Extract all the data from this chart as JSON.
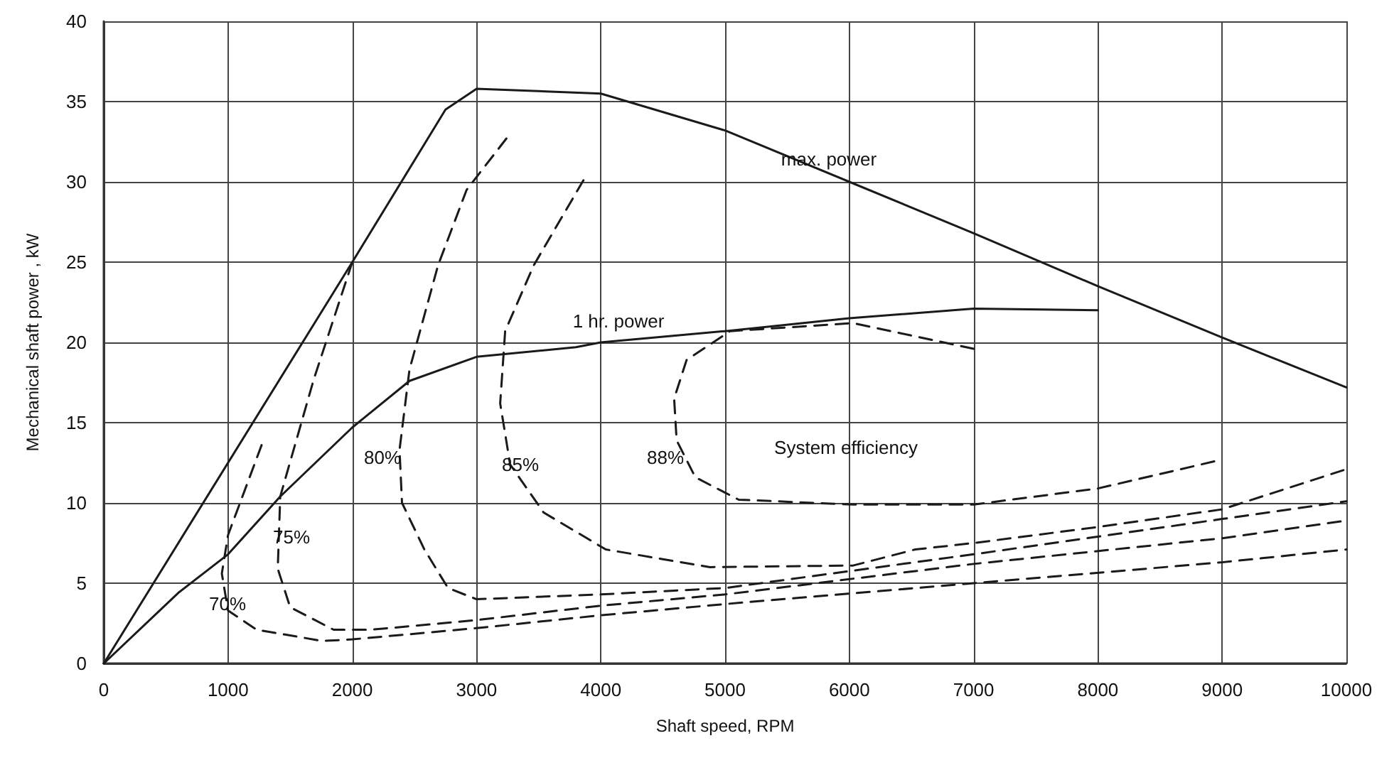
{
  "chart_data": {
    "type": "line",
    "xlabel": "Shaft speed, RPM",
    "ylabel": "Mechanical shaft power , kW",
    "xlim": [
      0,
      10000
    ],
    "xticks": [
      0,
      1000,
      2000,
      3000,
      4000,
      5000,
      6000,
      7000,
      8000,
      9000,
      10000
    ],
    "ylim": [
      0,
      40
    ],
    "yticks": [
      0,
      5,
      10,
      15,
      20,
      25,
      30,
      35,
      40
    ],
    "grid": true,
    "marker": "none",
    "series": [
      {
        "color": "#1a1a1a",
        "line_style": "solid",
        "x": [
          0,
          2000,
          2750,
          3000,
          4000,
          5000,
          6000,
          7000,
          8000,
          9000,
          10000
        ],
        "values": [
          0,
          25,
          34.5,
          35.8,
          35.5,
          33.2,
          30,
          26.8,
          23.5,
          20.3,
          17.2
        ]
      },
      {
        "color": "#1a1a1a",
        "line_style": "solid",
        "x": [
          0,
          600,
          1000,
          1420,
          2000,
          2460,
          3000,
          3800,
          4000,
          5000,
          6000,
          7000,
          8000
        ],
        "values": [
          0,
          4.4,
          6.8,
          10.4,
          14.7,
          17.6,
          19.1,
          19.7,
          20,
          20.7,
          21.5,
          22.1,
          22
        ]
      },
      {
        "color": "#1a1a1a",
        "line_style": "dashed",
        "x": [
          7000,
          6030,
          5040,
          4690,
          4590,
          4610,
          4760,
          5110,
          6030,
          7000,
          8000,
          9000
        ],
        "values": [
          19.6,
          21.2,
          20.7,
          18.9,
          16.5,
          13.9,
          11.6,
          10.2,
          9.9,
          9.9,
          10.9,
          12.7
        ]
      },
      {
        "color": "#1a1a1a",
        "line_style": "dashed",
        "x": [
          3860,
          3460,
          3230,
          3190,
          3270,
          3540,
          4040,
          4880,
          6030,
          6530,
          7000,
          8000,
          9000,
          10000
        ],
        "values": [
          30.1,
          24.8,
          20.7,
          16.2,
          12.4,
          9.4,
          7.1,
          6,
          6.1,
          7.1,
          7.5,
          8.5,
          9.6,
          12.1
        ]
      },
      {
        "color": "#1a1a1a",
        "line_style": "dashed",
        "x": [
          3240,
          2920,
          2690,
          2460,
          2380,
          2400,
          2580,
          2770,
          3000,
          4000,
          5000,
          7000,
          9000,
          10000
        ],
        "values": [
          32.7,
          29.5,
          24.8,
          18.3,
          13.3,
          10,
          7.1,
          4.7,
          4,
          4.3,
          4.7,
          6.8,
          9,
          10.1
        ]
      },
      {
        "color": "#1a1a1a",
        "line_style": "dashed",
        "x": [
          2000,
          1690,
          1420,
          1400,
          1500,
          1850,
          2150,
          3000,
          4000,
          5000,
          7000,
          9000,
          10000
        ],
        "values": [
          25,
          17.7,
          10.4,
          5.9,
          3.5,
          2.1,
          2.1,
          2.7,
          3.6,
          4.3,
          6.2,
          7.8,
          8.9
        ]
      },
      {
        "color": "#1a1a1a",
        "line_style": "dashed",
        "x": [
          1270,
          1000,
          950,
          1000,
          1230,
          1760,
          2000,
          3000,
          4000,
          5000,
          7000,
          9000,
          10000
        ],
        "values": [
          13.6,
          8,
          5.6,
          3.3,
          2.1,
          1.4,
          1.5,
          2.2,
          3,
          3.7,
          5,
          6.3,
          7.1
        ]
      }
    ],
    "annotations": [
      "max. power",
      "1 hr. power",
      "System efficiency",
      "70%",
      "75%",
      "80%",
      "85%",
      "88%"
    ]
  }
}
